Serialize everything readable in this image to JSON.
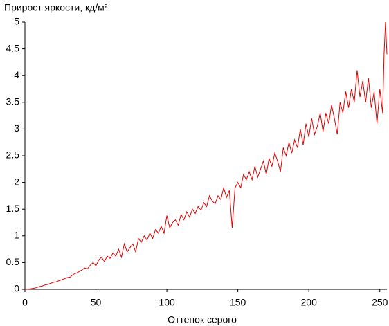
{
  "chart_data": {
    "type": "line",
    "title": "Прирост яркости, кд/м²",
    "xlabel": "Оттенок серого",
    "xlim": [
      0,
      255
    ],
    "ylim": [
      0,
      5
    ],
    "xticks": [
      0,
      50,
      100,
      150,
      200,
      250
    ],
    "yticks": [
      0,
      0.5,
      1,
      1.5,
      2,
      2.5,
      3,
      3.5,
      4,
      4.5,
      5
    ],
    "grid": false,
    "x": [
      0,
      2,
      4,
      6,
      8,
      10,
      12,
      14,
      16,
      18,
      20,
      22,
      24,
      26,
      28,
      30,
      32,
      34,
      36,
      38,
      40,
      42,
      44,
      46,
      48,
      50,
      52,
      54,
      56,
      58,
      60,
      62,
      64,
      66,
      68,
      70,
      72,
      74,
      76,
      78,
      80,
      82,
      84,
      86,
      88,
      90,
      92,
      94,
      96,
      98,
      100,
      102,
      104,
      106,
      108,
      110,
      112,
      114,
      116,
      118,
      120,
      122,
      124,
      126,
      128,
      130,
      132,
      134,
      136,
      138,
      140,
      142,
      144,
      146,
      148,
      150,
      152,
      154,
      156,
      158,
      160,
      162,
      164,
      166,
      168,
      170,
      172,
      174,
      176,
      178,
      180,
      182,
      184,
      186,
      188,
      190,
      192,
      194,
      196,
      198,
      200,
      202,
      204,
      206,
      208,
      210,
      212,
      214,
      216,
      218,
      220,
      222,
      224,
      226,
      228,
      230,
      232,
      234,
      236,
      238,
      240,
      242,
      244,
      246,
      248,
      250,
      252,
      253,
      254,
      255
    ],
    "series": [
      {
        "color": "#e00000",
        "values": [
          0,
          0,
          0.01,
          0.02,
          0.03,
          0.05,
          0.06,
          0.08,
          0.09,
          0.11,
          0.13,
          0.14,
          0.16,
          0.18,
          0.2,
          0.22,
          0.23,
          0.28,
          0.3,
          0.33,
          0.36,
          0.4,
          0.38,
          0.45,
          0.5,
          0.44,
          0.55,
          0.6,
          0.52,
          0.62,
          0.58,
          0.68,
          0.62,
          0.75,
          0.6,
          0.85,
          0.7,
          0.78,
          0.85,
          0.7,
          0.95,
          0.88,
          1.0,
          0.92,
          1.05,
          0.95,
          1.12,
          1.05,
          1.18,
          1.05,
          1.38,
          1.15,
          1.25,
          1.3,
          1.2,
          1.4,
          1.3,
          1.45,
          1.35,
          1.5,
          1.42,
          1.55,
          1.48,
          1.62,
          1.55,
          1.75,
          1.65,
          1.6,
          1.75,
          1.68,
          1.9,
          1.72,
          1.85,
          1.15,
          1.9,
          2.0,
          1.9,
          2.15,
          2.05,
          2.2,
          2.05,
          2.3,
          2.1,
          2.25,
          2.4,
          2.15,
          2.45,
          2.3,
          2.55,
          2.4,
          2.2,
          2.65,
          2.5,
          2.75,
          2.55,
          2.8,
          2.65,
          3.0,
          2.7,
          3.1,
          2.85,
          3.2,
          2.9,
          3.05,
          3.3,
          2.95,
          3.3,
          3.1,
          3.45,
          3.2,
          2.9,
          3.5,
          3.3,
          3.7,
          3.4,
          3.75,
          3.5,
          4.1,
          3.6,
          3.9,
          3.5,
          3.95,
          3.4,
          3.7,
          3.1,
          3.75,
          3.3,
          4.4,
          5.0,
          4.4
        ]
      }
    ]
  }
}
